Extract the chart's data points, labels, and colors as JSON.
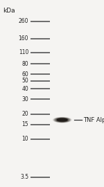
{
  "background_color": "#f5f4f2",
  "ladder_labels": [
    "260",
    "160",
    "110",
    "80",
    "60",
    "50",
    "40",
    "30",
    "20",
    "15",
    "10",
    "3.5"
  ],
  "ladder_kda": [
    260,
    160,
    110,
    80,
    60,
    50,
    40,
    30,
    20,
    15,
    10,
    3.5
  ],
  "kda_label": "kDa",
  "kda_label_fontsize": 6.5,
  "ladder_fontsize": 5.5,
  "ladder_color": "#555555",
  "sample_band_kda": 17.0,
  "sample_band_color": "#3a3530",
  "annotation_text": "TNF Alpha",
  "annotation_fontsize": 6.0,
  "fig_width": 1.5,
  "fig_height": 2.7,
  "dpi": 100
}
